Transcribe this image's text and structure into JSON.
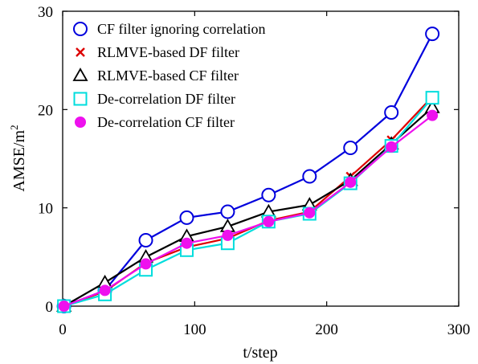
{
  "chart_data": {
    "type": "line",
    "xlabel": "t/step",
    "ylabel": "AMSE/m",
    "ylabel_superscript": "2",
    "xlim": [
      0,
      300
    ],
    "ylim": [
      0,
      30
    ],
    "xticks": [
      "0",
      "100",
      "200",
      "300"
    ],
    "yticks": [
      "0",
      "10",
      "20",
      "30"
    ],
    "grid": false,
    "legend_position": "top-left",
    "x": [
      1,
      32,
      63,
      94,
      125,
      156,
      187,
      218,
      249,
      280
    ],
    "series": [
      {
        "name": "CF filter ignoring correlation",
        "color": "#0000dd",
        "marker": "open-circle",
        "values": [
          0,
          1.6,
          6.7,
          9.0,
          9.6,
          11.3,
          13.2,
          16.1,
          19.7,
          27.7
        ]
      },
      {
        "name": "RLMVE-based DF filter",
        "color": "#dd0000",
        "marker": "cross",
        "values": [
          0,
          1.5,
          4.4,
          6.0,
          6.9,
          8.7,
          9.6,
          13.2,
          16.9,
          21.3
        ]
      },
      {
        "name": "RLMVE-based CF filter",
        "color": "#000000",
        "marker": "open-triangle",
        "values": [
          0,
          2.4,
          5.0,
          7.1,
          8.1,
          9.6,
          10.3,
          12.8,
          16.5,
          20.2
        ]
      },
      {
        "name": "De-correlation DF filter",
        "color": "#00dddd",
        "marker": "open-square",
        "values": [
          0,
          1.2,
          3.7,
          5.7,
          6.4,
          8.6,
          9.4,
          12.5,
          16.3,
          21.2
        ]
      },
      {
        "name": "De-correlation CF filter",
        "color": "#ee11ee",
        "marker": "filled-circle",
        "values": [
          0,
          1.6,
          4.3,
          6.4,
          7.2,
          8.6,
          9.5,
          12.6,
          16.2,
          19.4
        ]
      }
    ]
  }
}
